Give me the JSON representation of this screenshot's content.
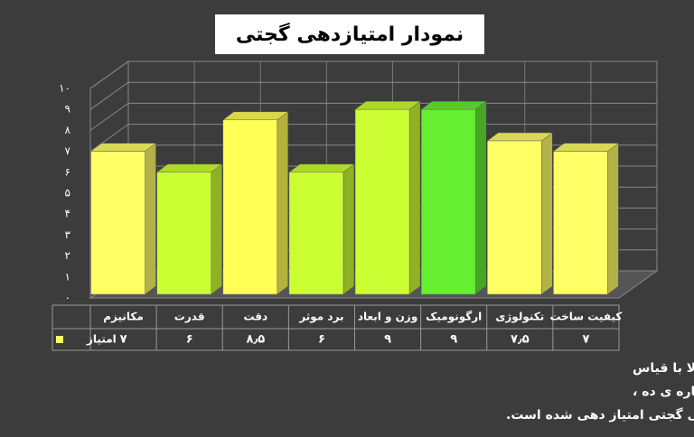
{
  "chart_data": {
    "type": "bar3d",
    "title": "نمودار امتیازدهی گجتی",
    "categories": [
      "مکانیزم",
      "قدرت",
      "دقت",
      "برد موثر",
      "وزن و ابعاد",
      "ارگونومیک",
      "تکنولوژی",
      "کیفیت ساخت"
    ],
    "series": [
      {
        "name": "امتیاز",
        "color": "#ffff66",
        "values": [
          7,
          6,
          8.5,
          6,
          9,
          9,
          7.5,
          7
        ],
        "value_labels": [
          "۷",
          "۶",
          "۸٫۵",
          "۶",
          "۹",
          "۹",
          "۷٫۵",
          "۷"
        ],
        "colors": [
          "#ffff66",
          "#ccff33",
          "#ffff55",
          "#ccff33",
          "#ccff33",
          "#66ee33",
          "#ffff66",
          "#ffff66"
        ]
      }
    ],
    "ylim": [
      0,
      10
    ],
    "yticks": [
      {
        "value": 0,
        "label": "۰"
      },
      {
        "value": 1,
        "label": "۱"
      },
      {
        "value": 2,
        "label": "۲"
      },
      {
        "value": 3,
        "label": "۳"
      },
      {
        "value": 4,
        "label": "۴"
      },
      {
        "value": 5,
        "label": "۵"
      },
      {
        "value": 6,
        "label": "۶"
      },
      {
        "value": 7,
        "label": "۷"
      },
      {
        "value": 8,
        "label": "۸"
      },
      {
        "value": 9,
        "label": "۹"
      },
      {
        "value": 10,
        "label": "۱۰"
      }
    ],
    "grid": true,
    "caption": [
      "نمودار امتیازدهی گجتی برای تفنگ بادی گامو شادو دی ایکس بر اساس هشت فاکتور مندرج بالا با قیاس",
      "اسلحه فوق با تفنگ های هم کلاس (ساختار شلیک یکسان) ارزیابی و در هر بخش بر مبنای شماره ی ده ،",
      "توسط تیم تخصصی گجتی امتیاز دهی شده است."
    ]
  }
}
